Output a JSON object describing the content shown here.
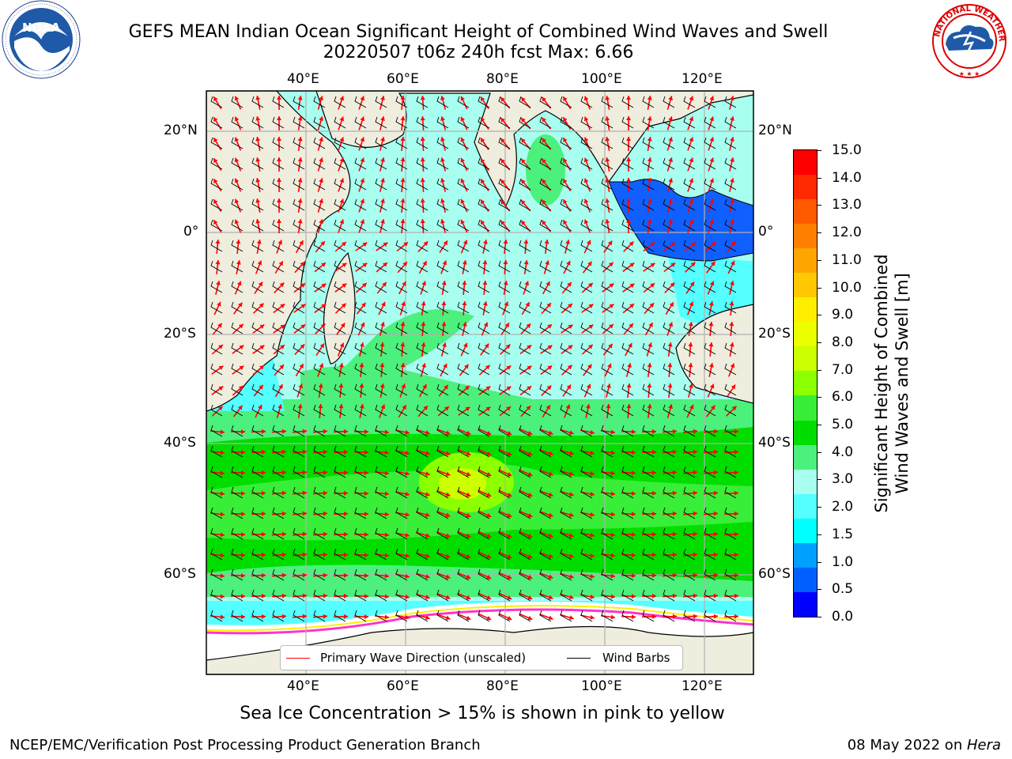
{
  "title": {
    "line1": "GEFS MEAN Indian Ocean Significant Height of Combined Wind Waves and Swell",
    "line2": "20220507 t06z 240h fcst   Max: 6.66"
  },
  "logos": {
    "left": "noaa-logo",
    "left_text": "NOAA",
    "left_ring": "NATIONAL OCEANIC AND ATMOSPHERIC ADMINISTRATION · U.S. DEPARTMENT OF COMMERCE",
    "right": "nws-logo",
    "right_ring": "NATIONAL WEATHER SERVICE"
  },
  "map": {
    "lon_labels": [
      "40°E",
      "60°E",
      "80°E",
      "100°E",
      "120°E"
    ],
    "lat_labels_left": [
      "20°N",
      "0°",
      "20°S",
      "40°S",
      "60°S"
    ],
    "lat_labels_right": [
      "20°N",
      "0°",
      "20°S",
      "40°S",
      "60°S"
    ],
    "land_color": "#efedde",
    "grid_color": "#b0b0b0"
  },
  "legend": {
    "items": [
      {
        "label": "Primary Wave Direction (unscaled)",
        "color": "#ff0000"
      },
      {
        "label": "Wind Barbs",
        "color": "#000000"
      }
    ]
  },
  "colorbar": {
    "title_line1": "Significant Height of Combined",
    "title_line2": "Wind Waves and Swell [m]",
    "ticks": [
      "15.0",
      "14.0",
      "13.0",
      "12.0",
      "11.0",
      "10.0",
      "9.0",
      "8.0",
      "7.0",
      "6.0",
      "5.0",
      "4.0",
      "3.0",
      "2.0",
      "1.5",
      "1.0",
      "0.5",
      "0.0"
    ],
    "colors_top_to_bottom": [
      "#ff0000",
      "#ff2a00",
      "#ff5a00",
      "#ff7f00",
      "#ffa500",
      "#ffc800",
      "#ffee00",
      "#ecff00",
      "#ccff00",
      "#8cff00",
      "#38ee38",
      "#00dd00",
      "#4cf07c",
      "#a8fff0",
      "#55ffff",
      "#00ffff",
      "#00a0ff",
      "#0060ff",
      "#0000ff"
    ]
  },
  "caption": "Sea Ice Concentration > 15% is shown in pink to yellow",
  "footer": {
    "left": "NCEP/EMC/Verification Post Processing Product Generation Branch",
    "right_prefix": "08 May 2022 on ",
    "right_machine": "Hera"
  }
}
